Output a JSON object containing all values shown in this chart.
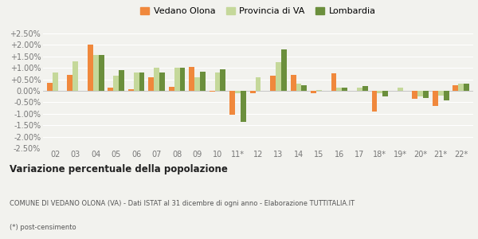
{
  "years": [
    "02",
    "03",
    "04",
    "05",
    "06",
    "07",
    "08",
    "09",
    "10",
    "11*",
    "12",
    "13",
    "14",
    "15",
    "16",
    "17",
    "18*",
    "19*",
    "20*",
    "21*",
    "22*"
  ],
  "vedano": [
    0.0035,
    0.007,
    0.02,
    0.0015,
    0.0008,
    0.006,
    0.0018,
    0.0105,
    -0.0005,
    -0.0105,
    -0.0012,
    0.0065,
    0.007,
    -0.001,
    0.0075,
    0.0,
    -0.009,
    0.0,
    -0.0035,
    -0.0065,
    0.0025
  ],
  "provincia": [
    0.008,
    0.013,
    0.0155,
    0.0065,
    0.008,
    0.01,
    0.01,
    0.006,
    0.008,
    -0.001,
    0.006,
    0.0125,
    0.003,
    0.0005,
    0.0015,
    0.0015,
    -0.001,
    0.0015,
    -0.0025,
    -0.002,
    0.003
  ],
  "lombardia": [
    0.0,
    0.0,
    0.0155,
    0.009,
    0.008,
    0.008,
    0.01,
    0.0085,
    0.0095,
    -0.0135,
    0.0,
    0.018,
    0.0025,
    0.0,
    0.0015,
    0.002,
    -0.0025,
    0.0,
    -0.003,
    -0.004,
    0.003
  ],
  "color_vedano": "#f0883c",
  "color_provincia": "#c5d89a",
  "color_lombardia": "#6b8f3c",
  "ylim_min": -0.025,
  "ylim_max": 0.025,
  "yticks": [
    -0.025,
    -0.02,
    -0.015,
    -0.01,
    -0.005,
    0.0,
    0.005,
    0.01,
    0.015,
    0.02,
    0.025
  ],
  "ytick_labels": [
    "-2.50%",
    "-2.00%",
    "-1.50%",
    "-1.00%",
    "-0.50%",
    "0.00%",
    "+0.50%",
    "+1.00%",
    "+1.50%",
    "+2.00%",
    "+2.50%"
  ],
  "legend_labels": [
    "Vedano Olona",
    "Provincia di VA",
    "Lombardia"
  ],
  "title": "Variazione percentuale della popolazione",
  "footer1": "COMUNE DI VEDANO OLONA (VA) - Dati ISTAT al 31 dicembre di ogni anno - Elaborazione TUTTITALIA.IT",
  "footer2": "(*) post-censimento",
  "bg_color": "#f2f2ee",
  "bar_width": 0.27
}
